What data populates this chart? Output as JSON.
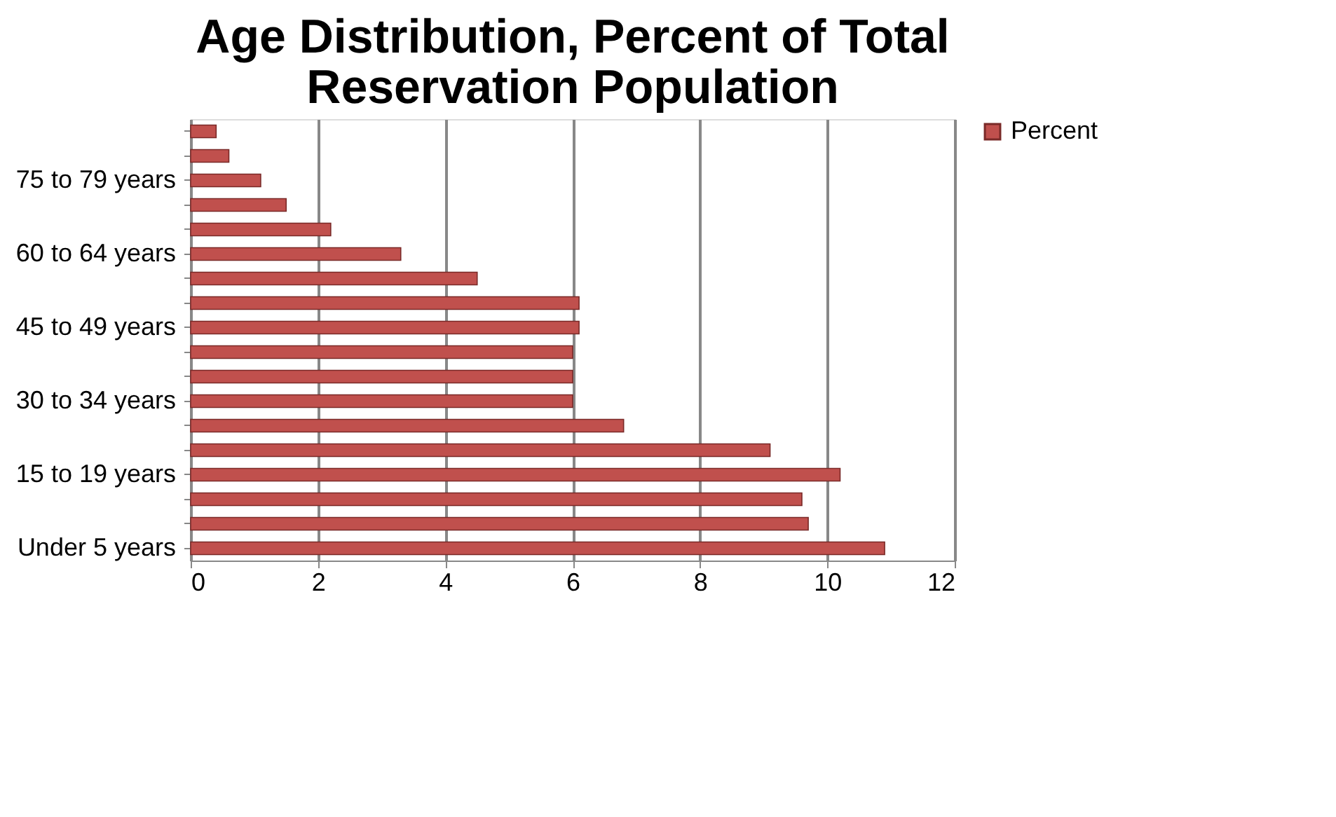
{
  "chart_data": {
    "type": "bar",
    "orientation": "horizontal",
    "title": "Age Distribution, Percent of Total Reservation Population",
    "categories": [
      null,
      null,
      "75 to 79 years",
      null,
      null,
      "60 to 64 years",
      null,
      null,
      "45 to 49 years",
      null,
      null,
      "30 to 34 years",
      null,
      null,
      "15 to 19 years",
      null,
      null,
      "Under 5 years"
    ],
    "series": [
      {
        "name": "Percent",
        "color": "#c0504d",
        "values": [
          0.4,
          0.6,
          1.1,
          1.5,
          2.2,
          3.3,
          4.5,
          6.1,
          6.1,
          6.0,
          6.0,
          6.0,
          6.8,
          9.1,
          10.2,
          9.6,
          9.7,
          10.9
        ]
      }
    ],
    "xlim": [
      0,
      12
    ],
    "xticks": [
      0,
      2,
      4,
      6,
      8,
      10,
      12
    ],
    "grid": "x",
    "legend": "right"
  }
}
